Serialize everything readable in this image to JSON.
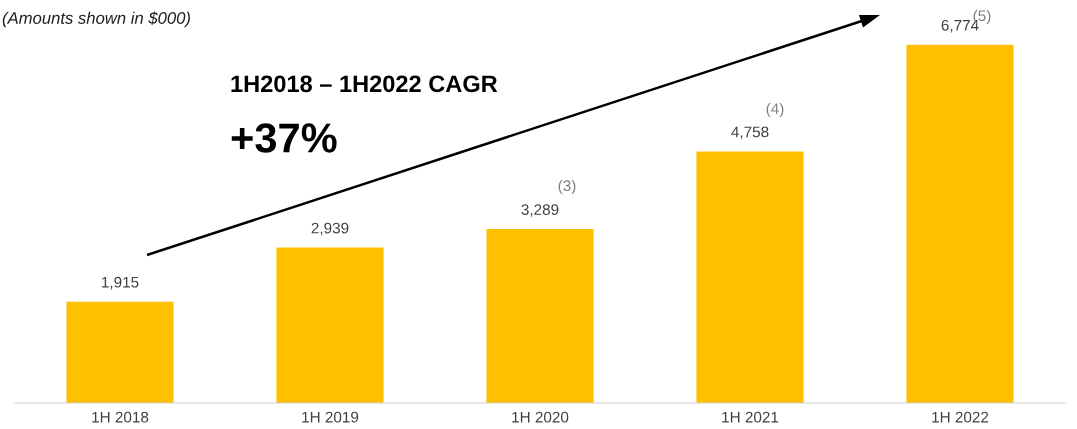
{
  "chart_data": {
    "type": "bar",
    "categories": [
      "1H 2018",
      "1H 2019",
      "1H 2020",
      "1H 2021",
      "1H 2022"
    ],
    "values": [
      1915,
      2939,
      3289,
      4758,
      6774
    ],
    "value_labels": [
      "1,915",
      "2,939",
      "3,289",
      "4,758",
      "6,774"
    ],
    "color": "#ffc000",
    "annotations": [
      "(Amounts shown in $000)",
      "1H2018 – 1H2022 CAGR",
      "+37%",
      "(3)",
      "(4)",
      "(5)"
    ],
    "grid": false,
    "legend": false
  }
}
